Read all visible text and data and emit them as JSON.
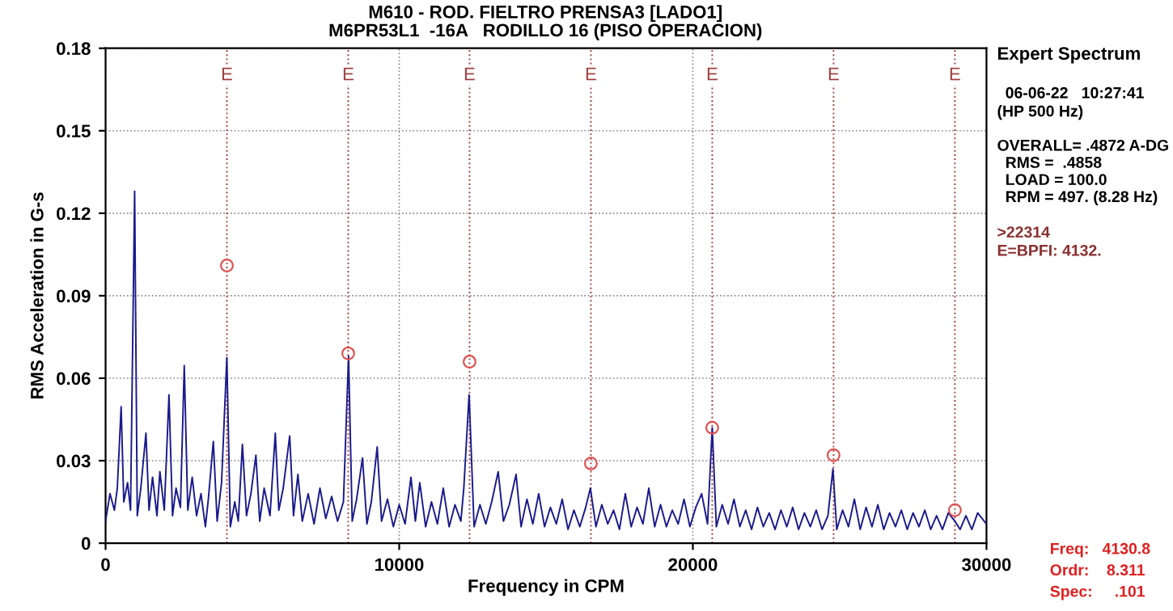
{
  "chart_data": {
    "type": "line",
    "title": "M610 - ROD. FIELTRO PRENSA3 [LADO1]",
    "subtitle": "M6PR53L1  -16A   RODILLO 16 (PISO OPERACION)",
    "xlabel": "Frequency in CPM",
    "ylabel": "RMS Acceleration in G-s",
    "xlim": [
      0,
      30000
    ],
    "xticks": [
      0,
      10000,
      20000,
      30000
    ],
    "ylim": [
      0,
      0.18
    ],
    "yticks": [
      0,
      0.03,
      0.06,
      0.09,
      0.12,
      0.15,
      0.18
    ],
    "grid": true,
    "series": [
      {
        "color": "#1a1a8c",
        "x": [
          0,
          150,
          300,
          400,
          530,
          620,
          750,
          850,
          990,
          1080,
          1200,
          1375,
          1480,
          1600,
          1750,
          1850,
          2000,
          2160,
          2280,
          2400,
          2550,
          2680,
          2800,
          2950,
          3100,
          3250,
          3400,
          3500,
          3670,
          3800,
          3950,
          4130,
          4250,
          4400,
          4520,
          4660,
          4800,
          4950,
          5120,
          5250,
          5400,
          5600,
          5780,
          5900,
          6050,
          6270,
          6400,
          6550,
          6700,
          6900,
          7100,
          7300,
          7500,
          7700,
          7900,
          8100,
          8275,
          8400,
          8550,
          8750,
          8900,
          9050,
          9250,
          9400,
          9600,
          9800,
          10000,
          10200,
          10400,
          10550,
          10700,
          10900,
          11100,
          11300,
          11500,
          11700,
          11900,
          12100,
          12200,
          12380,
          12550,
          12750,
          12950,
          13150,
          13370,
          13550,
          13750,
          13980,
          14150,
          14350,
          14550,
          14750,
          14950,
          15150,
          15350,
          15550,
          15750,
          15950,
          16150,
          16350,
          16510,
          16700,
          16900,
          17100,
          17300,
          17500,
          17700,
          17900,
          18100,
          18300,
          18500,
          18700,
          18900,
          19100,
          19300,
          19500,
          19700,
          19900,
          20100,
          20300,
          20500,
          20660,
          20800,
          21000,
          21200,
          21400,
          21600,
          21800,
          22000,
          22200,
          22400,
          22600,
          22800,
          23000,
          23200,
          23400,
          23600,
          23800,
          24000,
          24200,
          24400,
          24600,
          24770,
          24900,
          25100,
          25300,
          25500,
          25700,
          25900,
          26100,
          26300,
          26500,
          26700,
          26900,
          27100,
          27300,
          27500,
          27700,
          27900,
          28100,
          28300,
          28500,
          28700,
          28924,
          29100,
          29300,
          29500,
          29700,
          30000
        ],
        "values": [
          0.008,
          0.018,
          0.012,
          0.02,
          0.0496,
          0.015,
          0.022,
          0.012,
          0.128,
          0.01,
          0.02,
          0.04,
          0.012,
          0.024,
          0.01,
          0.026,
          0.012,
          0.054,
          0.01,
          0.02,
          0.013,
          0.0646,
          0.012,
          0.024,
          0.01,
          0.018,
          0.006,
          0.016,
          0.037,
          0.008,
          0.022,
          0.0675,
          0.006,
          0.015,
          0.008,
          0.036,
          0.01,
          0.018,
          0.032,
          0.008,
          0.02,
          0.01,
          0.04,
          0.012,
          0.02,
          0.039,
          0.01,
          0.025,
          0.008,
          0.018,
          0.007,
          0.02,
          0.009,
          0.017,
          0.008,
          0.015,
          0.068,
          0.008,
          0.016,
          0.031,
          0.007,
          0.015,
          0.035,
          0.008,
          0.016,
          0.006,
          0.014,
          0.007,
          0.024,
          0.008,
          0.022,
          0.006,
          0.015,
          0.007,
          0.02,
          0.006,
          0.014,
          0.008,
          0.02,
          0.054,
          0.006,
          0.014,
          0.007,
          0.015,
          0.026,
          0.008,
          0.014,
          0.025,
          0.006,
          0.016,
          0.007,
          0.018,
          0.006,
          0.013,
          0.007,
          0.016,
          0.005,
          0.012,
          0.006,
          0.013,
          0.02,
          0.006,
          0.014,
          0.007,
          0.012,
          0.005,
          0.018,
          0.006,
          0.013,
          0.007,
          0.02,
          0.006,
          0.014,
          0.006,
          0.012,
          0.007,
          0.016,
          0.006,
          0.013,
          0.018,
          0.007,
          0.042,
          0.006,
          0.014,
          0.007,
          0.016,
          0.006,
          0.012,
          0.005,
          0.013,
          0.006,
          0.011,
          0.005,
          0.012,
          0.006,
          0.013,
          0.005,
          0.011,
          0.006,
          0.012,
          0.005,
          0.01,
          0.027,
          0.005,
          0.012,
          0.006,
          0.016,
          0.005,
          0.013,
          0.006,
          0.014,
          0.005,
          0.011,
          0.006,
          0.012,
          0.005,
          0.011,
          0.006,
          0.012,
          0.005,
          0.01,
          0.005,
          0.011,
          0.008,
          0.005,
          0.01,
          0.005,
          0.011,
          0.007
        ]
      },
      {
        "type": "scatter",
        "marker": "circle",
        "color": "#e05050",
        "x": [
          4132,
          8264,
          12396,
          16528,
          20660,
          24792,
          28924
        ],
        "values": [
          0.101,
          0.069,
          0.066,
          0.029,
          0.042,
          0.032,
          0.012
        ]
      }
    ],
    "ref_lines": [
      {
        "axis": "x",
        "value": 4132,
        "label": "E",
        "color": "#a04040",
        "line_style": "dotted"
      },
      {
        "axis": "x",
        "value": 8264,
        "label": "E",
        "color": "#a04040",
        "line_style": "dotted"
      },
      {
        "axis": "x",
        "value": 12396,
        "label": "E",
        "color": "#a04040",
        "line_style": "dotted"
      },
      {
        "axis": "x",
        "value": 16528,
        "label": "E",
        "color": "#a04040",
        "line_style": "dotted"
      },
      {
        "axis": "x",
        "value": 20660,
        "label": "E",
        "color": "#a04040",
        "line_style": "dotted"
      },
      {
        "axis": "x",
        "value": 24792,
        "label": "E",
        "color": "#a04040",
        "line_style": "dotted"
      },
      {
        "axis": "x",
        "value": 28924,
        "label": "E",
        "color": "#a04040",
        "line_style": "dotted"
      }
    ],
    "annotations": [
      "Expert Spectrum",
      "06-06-22   10:27:41",
      "(HP 500 Hz)",
      "OVERALL= .4872 A-DG",
      "RMS =  .4858",
      "LOAD = 100.0",
      "RPM = 497. (8.28 Hz)",
      ">22314",
      "E=BPFI: 4132.",
      "Freq:   4130.8",
      "Ordr:    8.311",
      "Spec:     .101"
    ]
  }
}
